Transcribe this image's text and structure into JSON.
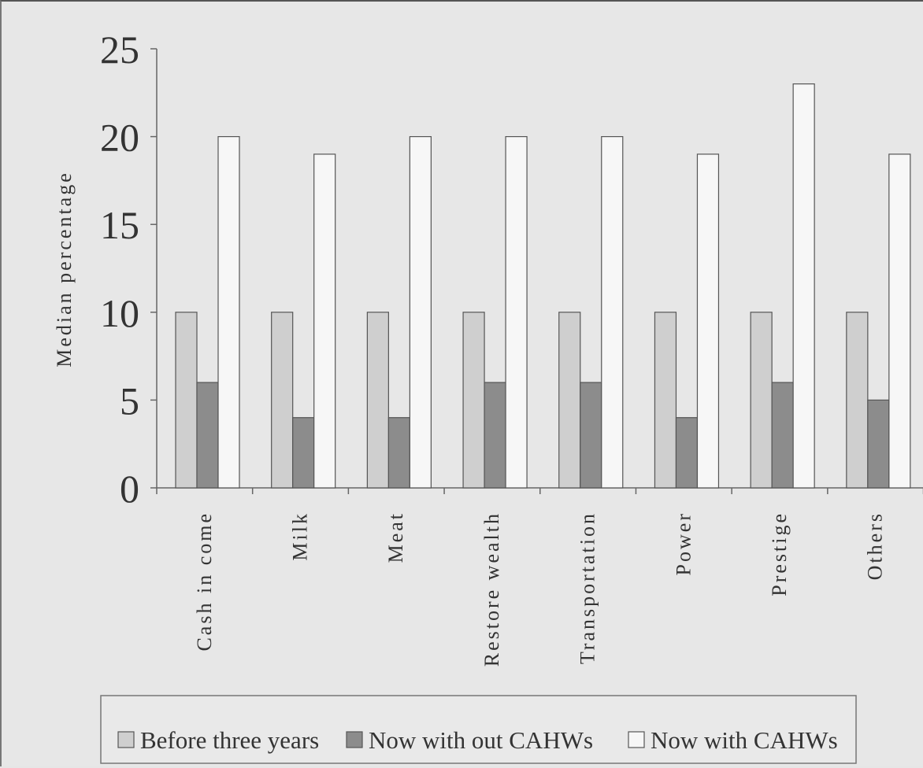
{
  "chart_data": {
    "type": "bar",
    "title": "",
    "ylabel": "Median percentage",
    "xlabel": "",
    "ylim": [
      0,
      25
    ],
    "yticks": [
      0,
      5,
      10,
      15,
      20,
      25
    ],
    "categories": [
      "Cash in come",
      "Milk",
      "Meat",
      "Restore wealth",
      "Transportation",
      "Power",
      "Prestige",
      "Others"
    ],
    "series": [
      {
        "name": "Before three years",
        "color": "#cfcfcf",
        "values": [
          10,
          10,
          10,
          10,
          10,
          10,
          10,
          10
        ]
      },
      {
        "name": "Now with out CAHWs",
        "color": "#8c8c8c",
        "values": [
          6,
          4,
          4,
          6,
          6,
          4,
          6,
          5
        ]
      },
      {
        "name": "Now with CAHWs",
        "color": "#f7f7f7",
        "values": [
          20,
          19,
          20,
          20,
          20,
          19,
          23,
          19
        ]
      }
    ],
    "grid": false,
    "legend_position": "bottom"
  }
}
